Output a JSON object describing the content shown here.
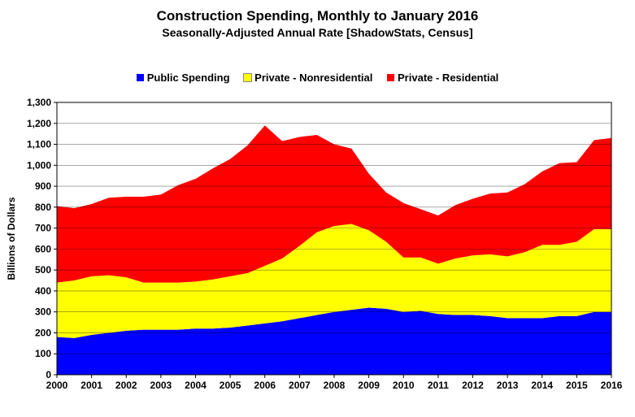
{
  "chart_data": {
    "type": "area",
    "title": "Construction Spending, Monthly to January 2016",
    "subtitle": "Seasonally-Adjusted Annual Rate [ShadowStats, Census]",
    "ylabel": "Billions  of Dollars",
    "xlabel": "",
    "stacked": true,
    "ylim": [
      0,
      1300
    ],
    "xlim": [
      2000,
      2016
    ],
    "grid": true,
    "legend_position": "top",
    "x_ticks": [
      "2000",
      "2001",
      "2002",
      "2003",
      "2004",
      "2005",
      "2006",
      "2007",
      "2008",
      "2009",
      "2010",
      "2011",
      "2012",
      "2013",
      "2014",
      "2015",
      "2016"
    ],
    "y_ticks": [
      "0",
      "100",
      "200",
      "300",
      "400",
      "500",
      "600",
      "700",
      "800",
      "900",
      "1,000",
      "1,100",
      "1,200",
      "1,300"
    ],
    "x": [
      2000.0,
      2000.5,
      2001.0,
      2001.5,
      2002.0,
      2002.5,
      2003.0,
      2003.5,
      2004.0,
      2004.5,
      2005.0,
      2005.5,
      2006.0,
      2006.5,
      2007.0,
      2007.5,
      2008.0,
      2008.5,
      2009.0,
      2009.5,
      2010.0,
      2010.5,
      2011.0,
      2011.5,
      2012.0,
      2012.5,
      2013.0,
      2013.5,
      2014.0,
      2014.5,
      2015.0,
      2015.5,
      2016.0
    ],
    "series": [
      {
        "name": "Public Spending",
        "color": "#0000ff",
        "values": [
          180,
          175,
          190,
          200,
          210,
          215,
          215,
          215,
          220,
          220,
          225,
          235,
          245,
          255,
          270,
          285,
          300,
          310,
          320,
          315,
          300,
          305,
          290,
          285,
          285,
          280,
          270,
          270,
          270,
          280,
          280,
          300,
          300
        ]
      },
      {
        "name": "Private - Nonresidential",
        "color": "#ffff00",
        "values": [
          260,
          275,
          280,
          275,
          255,
          225,
          225,
          225,
          225,
          235,
          245,
          250,
          275,
          300,
          345,
          395,
          410,
          410,
          370,
          320,
          260,
          255,
          240,
          270,
          285,
          295,
          295,
          315,
          350,
          340,
          355,
          395,
          395
        ]
      },
      {
        "name": "Private - Residential",
        "color": "#ff0000",
        "values": [
          365,
          345,
          345,
          370,
          385,
          410,
          420,
          465,
          490,
          530,
          560,
          610,
          670,
          560,
          520,
          465,
          390,
          360,
          270,
          235,
          260,
          230,
          230,
          255,
          270,
          290,
          305,
          325,
          350,
          390,
          380,
          425,
          435
        ]
      }
    ]
  }
}
